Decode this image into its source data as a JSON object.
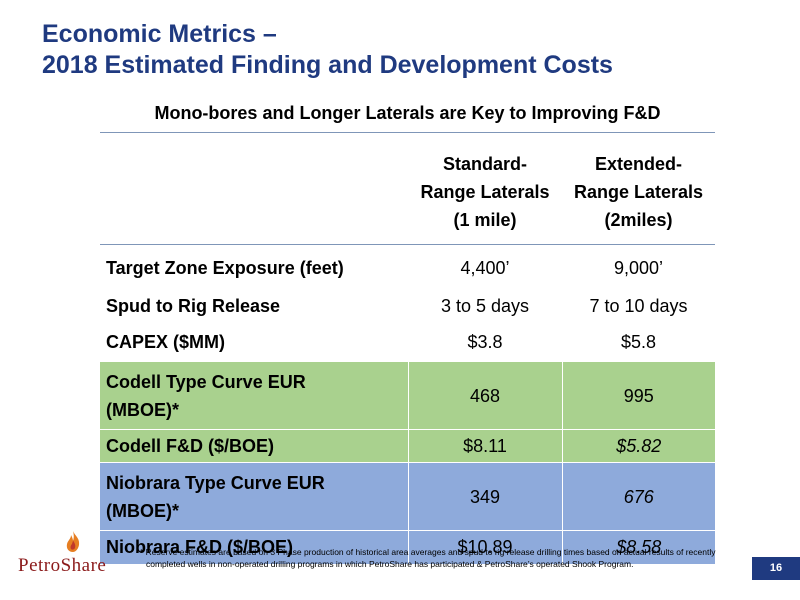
{
  "slide": {
    "title_line1": "Economic Metrics –",
    "title_line2": "2018 Estimated Finding and Development Costs",
    "subtitle": "Mono-bores and Longer Laterals are Key to Improving F&D",
    "page_number": "16"
  },
  "table": {
    "columns": [
      {
        "line1": "Standard-",
        "line2": "Range Laterals",
        "line3": "(1 mile)"
      },
      {
        "line1": "Extended-",
        "line2": "Range Laterals",
        "line3": "(2miles)"
      }
    ],
    "rows": [
      {
        "label": "Target Zone Exposure (feet)",
        "standard": "4,400’",
        "extended": "9,000’"
      },
      {
        "label": "Spud to Rig Release",
        "standard": "3 to 5 days",
        "extended": "7 to 10 days"
      },
      {
        "label": "CAPEX ($MM)",
        "standard": "$3.8",
        "extended": "$5.8"
      },
      {
        "label_line1": "Codell Type Curve EUR",
        "label_line2": "(MBOE)*",
        "standard": "468",
        "extended": "995"
      },
      {
        "label": "Codell F&D ($/BOE)",
        "standard": "$8.11",
        "extended": "$5.82"
      },
      {
        "label_line1": "Niobrara Type Curve EUR",
        "label_line2": "(MBOE)*",
        "standard": "349",
        "extended": "676"
      },
      {
        "label": "Niobrara F&D ($/BOE)",
        "standard": "$10.89",
        "extended": "$8.58"
      }
    ],
    "colors": {
      "green": "#a9d18e",
      "blue": "#8eaadb",
      "title": "#1f3a80"
    }
  },
  "footnote": {
    "line1": "* Reserve estimates are based on 3 Phase production of historical area averages and spud to rig release drilling times based on actual results of recently",
    "line2": "completed wells in non-operated drilling programs in which PetroShare has participated & PetroShare’s operated Shook Program."
  },
  "logo": {
    "text": "PetroShare",
    "icon": "flame-icon"
  }
}
